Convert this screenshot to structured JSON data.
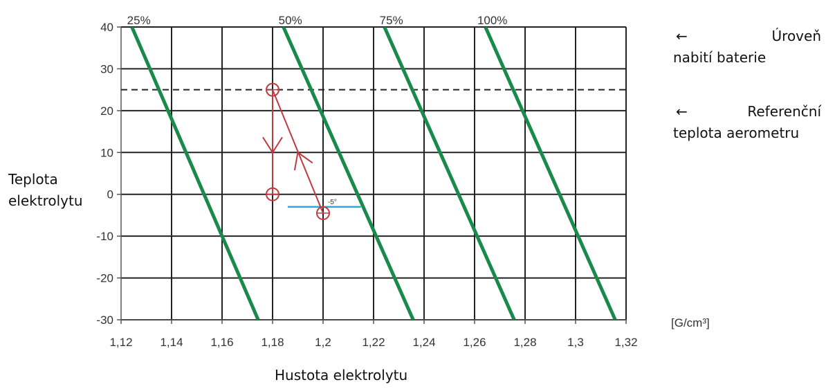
{
  "chart_data": {
    "type": "line",
    "xlabel": "Hustota elektrolytu",
    "ylabel_lines": [
      "Teplota",
      "elektrolytu"
    ],
    "unit": "[G/cm³]",
    "xlim": [
      1.12,
      1.32
    ],
    "ylim": [
      -30,
      40
    ],
    "x_ticks": [
      1.12,
      1.14,
      1.16,
      1.18,
      1.2,
      1.22,
      1.24,
      1.26,
      1.28,
      1.3,
      1.32
    ],
    "x_tick_labels": [
      "1,12",
      "1,14",
      "1,16",
      "1,18",
      "1,2",
      "1,22",
      "1,24",
      "1,26",
      "1,28",
      "1,3",
      "1,32"
    ],
    "y_ticks": [
      -30,
      -20,
      -10,
      0,
      10,
      20,
      30,
      40
    ],
    "y_tick_labels": [
      "-30",
      "-20",
      "-10",
      "0",
      "10",
      "20",
      "30",
      "40"
    ],
    "grid": true,
    "colors": {
      "series": "#1a8a4a",
      "annotation": "#c0393f",
      "marker": "#2aa9d6",
      "reference": "#222222"
    },
    "series": [
      {
        "name": "25%",
        "points": [
          [
            1.1243,
            40
          ],
          [
            1.1743,
            -30
          ]
        ]
      },
      {
        "name": "50%",
        "points": [
          [
            1.1843,
            40
          ],
          [
            1.2357,
            -30
          ]
        ]
      },
      {
        "name": "75%",
        "points": [
          [
            1.2243,
            40
          ],
          [
            1.2757,
            -30
          ]
        ]
      },
      {
        "name": "100%",
        "points": [
          [
            1.2643,
            40
          ],
          [
            1.3157,
            -30
          ]
        ]
      }
    ],
    "reference_line": {
      "y": 25,
      "style": "dashed"
    },
    "annotation": {
      "points": [
        [
          1.18,
          25
        ],
        [
          1.18,
          0
        ],
        [
          1.2,
          -4.5
        ]
      ],
      "arrows": [
        {
          "from": [
            1.18,
            25
          ],
          "to": [
            1.18,
            0
          ],
          "head_at": [
            1.18,
            10
          ]
        },
        {
          "from": [
            1.2,
            -4.5
          ],
          "to": [
            1.18,
            25
          ],
          "head_at": [
            1.19,
            10
          ]
        }
      ],
      "marker": {
        "x_range": [
          1.186,
          1.215
        ],
        "y": -3,
        "label": "-5°"
      }
    }
  },
  "legend": [
    {
      "arrow": "←",
      "word": "Úroveň",
      "line2": "nabití baterie"
    },
    {
      "arrow": "←",
      "word": "Referenční",
      "line2": "teplota aerometru"
    }
  ]
}
